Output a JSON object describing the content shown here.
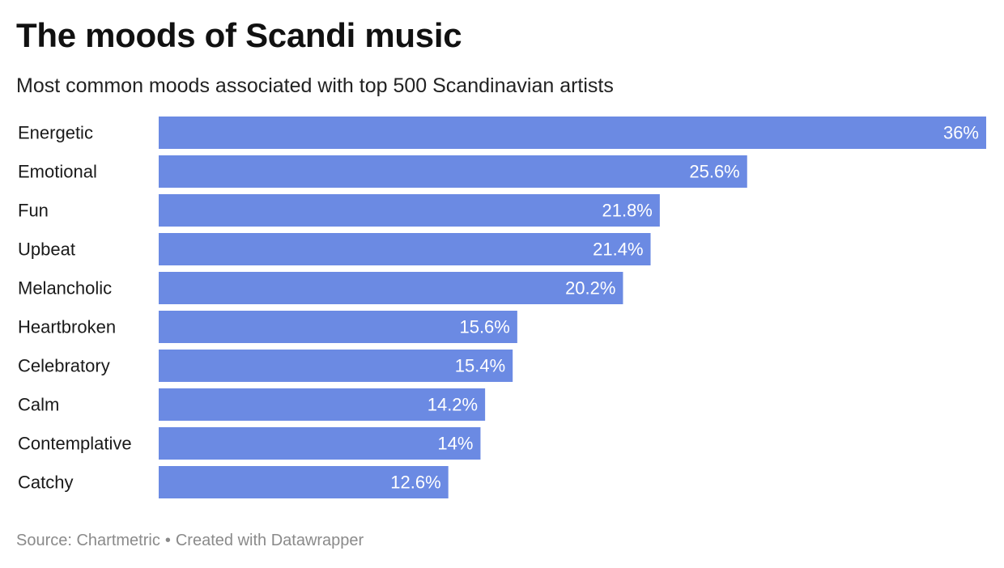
{
  "title": "The moods of Scandi music",
  "subtitle": "Most common moods associated with top 500 Scandinavian artists",
  "footer": {
    "source": "Source: Chartmetric",
    "separator": "•",
    "credit": "Created with Datawrapper"
  },
  "colors": {
    "bar": "#6b8ae3",
    "value_label": "#ffffff",
    "category_label": "#1a1a1a",
    "footer": "#8a8a8a"
  },
  "chart_data": {
    "type": "bar",
    "orientation": "horizontal",
    "categories": [
      "Energetic",
      "Emotional",
      "Fun",
      "Upbeat",
      "Melancholic",
      "Heartbroken",
      "Celebratory",
      "Calm",
      "Contemplative",
      "Catchy"
    ],
    "values": [
      36,
      25.6,
      21.8,
      21.4,
      20.2,
      15.6,
      15.4,
      14.2,
      14,
      12.6
    ],
    "value_labels": [
      "36%",
      "25.6%",
      "21.8%",
      "21.4%",
      "20.2%",
      "15.6%",
      "15.4%",
      "14.2%",
      "14%",
      "12.6%"
    ],
    "unit": "%",
    "xlim": [
      0,
      36
    ],
    "grid": false,
    "legend": "none"
  }
}
